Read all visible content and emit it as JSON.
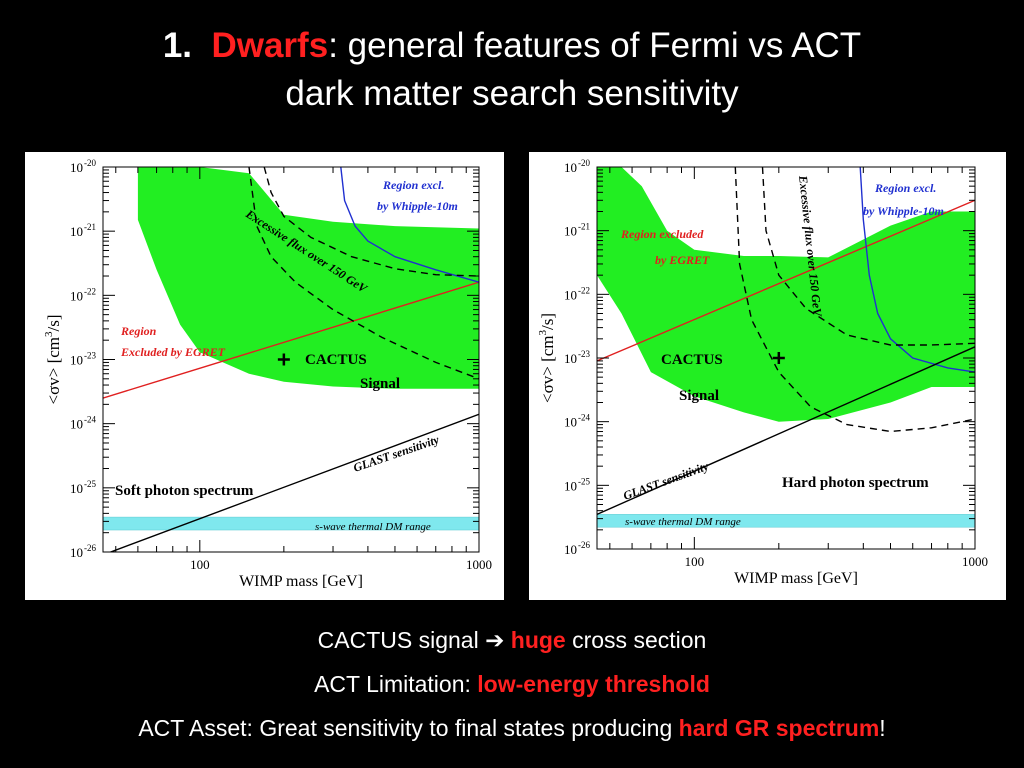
{
  "title": {
    "number": "1.",
    "highlight": "Dwarfs",
    "rest": ": general features of Fermi vs ACT",
    "line2": "dark matter search sensitivity"
  },
  "colors": {
    "signal_band": "#22ee22",
    "thermal_band": "#7fe8ee",
    "egret_line": "#e02020",
    "whipple_line": "#2030d0",
    "glast_line": "#000000",
    "highlight": "#ff2020"
  },
  "chart_data": [
    {
      "type": "line",
      "xlabel": "WIMP mass  [GeV]",
      "ylabel": "<σv>  [cm³/s]",
      "ylabel_parts": {
        "prefix": "<σv>  [cm",
        "exp": "3",
        "suffix": "/s]"
      },
      "x_scale": "log",
      "y_scale": "log",
      "xlim": [
        45,
        1000
      ],
      "ylim": [
        1e-26,
        1e-20
      ],
      "x_ticks": [
        {
          "value": 100,
          "label": "100"
        },
        {
          "value": 1000,
          "label": "1000"
        }
      ],
      "y_ticks": [
        {
          "value": 1e-20,
          "exp": "-20"
        },
        {
          "value": 1e-21,
          "exp": "-21"
        },
        {
          "value": 1e-22,
          "exp": "-22"
        },
        {
          "value": 1e-23,
          "exp": "-23"
        },
        {
          "value": 1e-24,
          "exp": "-24"
        },
        {
          "value": 1e-25,
          "exp": "-25"
        },
        {
          "value": 1e-26,
          "exp": "-26"
        }
      ],
      "series": [
        {
          "role": "signal_band_upper",
          "x": [
            60,
            85,
            100,
            150,
            200,
            300,
            500,
            1000
          ],
          "y": [
            1e-20,
            1e-20,
            1e-20,
            8e-21,
            1.8e-21,
            1.4e-21,
            1.2e-21,
            1.1e-21
          ]
        },
        {
          "role": "signal_band_lower",
          "x": [
            60,
            70,
            85,
            100,
            150,
            200,
            300,
            500,
            1000
          ],
          "y": [
            1.5e-21,
            2.5e-22,
            3.5e-23,
            1.3e-23,
            6e-24,
            4.5e-24,
            3.8e-24,
            3.5e-24,
            3.5e-24
          ]
        },
        {
          "name": "Region Excluded by EGRET",
          "x": [
            45,
            1000
          ],
          "y": [
            2.5e-24,
            1.6e-22
          ]
        },
        {
          "name": "Region excl. by Whipple-10m",
          "x": [
            320,
            330,
            360,
            400,
            500,
            700,
            1000
          ],
          "y": [
            1e-20,
            3e-21,
            1.2e-21,
            7e-22,
            4e-22,
            2.5e-22,
            1.6e-22
          ]
        },
        {
          "name": "Excessive flux over 150 GeV (upper)",
          "x": [
            170,
            180,
            200,
            250,
            350,
            500,
            700,
            1000
          ],
          "y": [
            1e-20,
            4e-21,
            1.7e-21,
            8e-22,
            4e-22,
            2.6e-22,
            2.1e-22,
            2e-22
          ]
        },
        {
          "name": "Excessive flux over 150 GeV (lower)",
          "x": [
            150,
            160,
            180,
            220,
            300,
            450,
            700,
            1000
          ],
          "y": [
            1e-20,
            1.2e-21,
            4e-22,
            1.6e-22,
            6e-23,
            2.2e-23,
            9e-24,
            5e-24
          ]
        },
        {
          "name": "GLAST sensitivity",
          "x": [
            45,
            1000
          ],
          "y": [
            9e-27,
            1.4e-24
          ]
        }
      ],
      "thermal_band": {
        "ymin": 2.2e-26,
        "ymax": 3.5e-26
      },
      "cactus_point": {
        "x": 200,
        "y": 1e-23
      },
      "labels": {
        "whipple": [
          "Region excl.",
          "by Whipple-10m"
        ],
        "excessive": "Excessive flux over 150 GeV",
        "egret": [
          "Region",
          "Excluded by EGRET"
        ],
        "cactus": "CACTUS",
        "signal": "Signal",
        "glast": "GLAST sensitivity",
        "spectrum": "Soft photon spectrum",
        "thermal": "s-wave thermal DM range"
      }
    },
    {
      "type": "line",
      "xlabel": "WIMP mass  [GeV]",
      "ylabel": "<σv>  [cm³/s]",
      "ylabel_parts": {
        "prefix": "<σv>  [cm",
        "exp": "3",
        "suffix": "/s]"
      },
      "x_scale": "log",
      "y_scale": "log",
      "xlim": [
        45,
        1000
      ],
      "ylim": [
        1e-26,
        1e-20
      ],
      "x_ticks": [
        {
          "value": 100,
          "label": "100"
        },
        {
          "value": 1000,
          "label": "1000"
        }
      ],
      "y_ticks": [
        {
          "value": 1e-20,
          "exp": "-20"
        },
        {
          "value": 1e-21,
          "exp": "-21"
        },
        {
          "value": 1e-22,
          "exp": "-22"
        },
        {
          "value": 1e-23,
          "exp": "-23"
        },
        {
          "value": 1e-24,
          "exp": "-24"
        },
        {
          "value": 1e-25,
          "exp": "-25"
        },
        {
          "value": 1e-26,
          "exp": "-26"
        }
      ],
      "series": [
        {
          "role": "signal_band_upper",
          "x": [
            45,
            55,
            65,
            80,
            100,
            150,
            200,
            300,
            500,
            700,
            1000
          ],
          "y": [
            1e-20,
            1e-20,
            5e-21,
            1e-21,
            5e-22,
            4e-22,
            4e-22,
            3.8e-22,
            1.2e-21,
            2e-21,
            2e-21
          ]
        },
        {
          "role": "signal_band_lower",
          "x": [
            45,
            55,
            70,
            100,
            150,
            200,
            300,
            500,
            700,
            1000
          ],
          "y": [
            2e-22,
            5e-23,
            6e-24,
            2.5e-24,
            1.4e-24,
            1e-24,
            1.1e-24,
            2e-24,
            3.5e-24,
            3.5e-24
          ]
        },
        {
          "name": "Region excluded by EGRET",
          "x": [
            45,
            1000
          ],
          "y": [
            9e-24,
            3e-21
          ]
        },
        {
          "name": "Region excl. by Whipple-10m",
          "x": [
            390,
            400,
            420,
            450,
            500,
            600,
            800,
            1000
          ],
          "y": [
            1e-20,
            1.5e-21,
            2e-22,
            5e-23,
            2e-23,
            1e-23,
            7e-24,
            6e-24
          ]
        },
        {
          "name": "Excessive flux over 150 GeV (upper)",
          "x": [
            175,
            180,
            200,
            250,
            350,
            500,
            700,
            1000
          ],
          "y": [
            1e-20,
            1e-21,
            2e-22,
            6e-23,
            2.3e-23,
            1.6e-23,
            1.6e-23,
            1.7e-23
          ]
        },
        {
          "name": "Excessive flux over 150 GeV (lower)",
          "x": [
            140,
            145,
            160,
            200,
            260,
            350,
            500,
            700,
            1000
          ],
          "y": [
            1e-20,
            3e-22,
            4e-23,
            6e-24,
            1.7e-24,
            9e-25,
            7e-25,
            8e-25,
            1.1e-24
          ]
        },
        {
          "name": "GLAST sensitivity",
          "x": [
            45,
            1000
          ],
          "y": [
            3.5e-26,
            1.5e-23
          ]
        }
      ],
      "thermal_band": {
        "ymin": 2.2e-26,
        "ymax": 3.5e-26
      },
      "cactus_point": {
        "x": 200,
        "y": 1e-23
      },
      "labels": {
        "whipple": [
          "Region excl.",
          "by Whipple-10m"
        ],
        "excessive": "Excessive flux over 150 GeV",
        "egret": [
          "Region excluded",
          "by EGRET"
        ],
        "cactus": "CACTUS",
        "signal": "Signal",
        "glast": "GLAST sensitivity",
        "spectrum": "Hard photon spectrum",
        "thermal": "s-wave thermal DM range"
      }
    }
  ],
  "bullets": {
    "b1_pre": "CACTUS signal",
    "b1_arrow": "➔",
    "b1_red": "huge",
    "b1_post": "cross section",
    "b2_pre": "ACT Limitation:",
    "b2_red": "low-energy threshold",
    "b3_pre": "ACT Asset: Great sensitivity to final states producing",
    "b3_red": "hard GR spectrum",
    "b3_post": "!"
  }
}
